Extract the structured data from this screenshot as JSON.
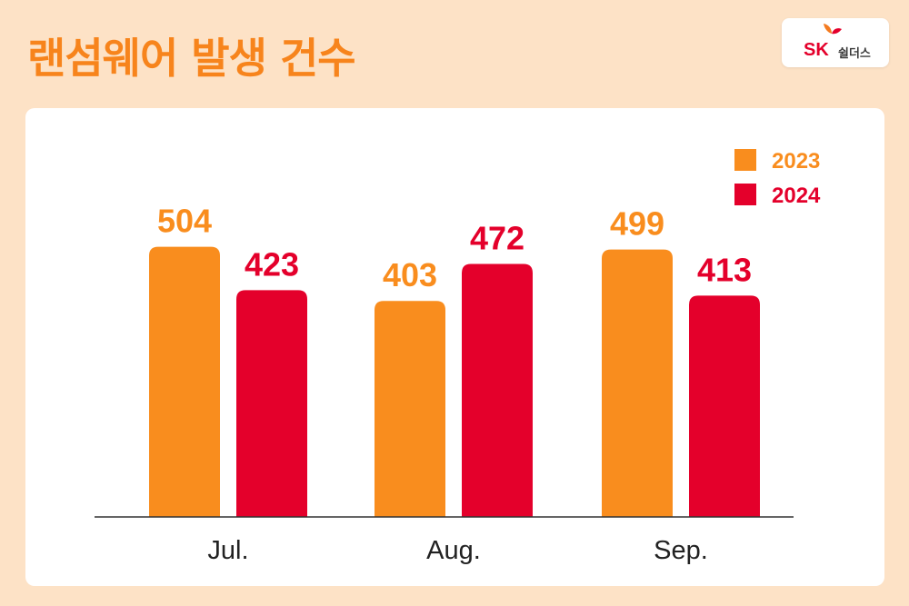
{
  "header": {
    "title": "랜섬웨어 발생 건수"
  },
  "logo": {
    "sk": "SK",
    "name": "쉴더스"
  },
  "colors": {
    "background": "#fde2c6",
    "title": "#f7841c",
    "series_2023": "#f98d1e",
    "series_2024": "#e4002b",
    "logo_red": "#e4002b",
    "logo_orange": "#f47b20",
    "axis": "#333333",
    "tick_text": "#222222"
  },
  "chart_data": {
    "type": "bar",
    "categories": [
      "Jul.",
      "Aug.",
      "Sep."
    ],
    "series": [
      {
        "name": "2023",
        "values": [
          504,
          403,
          499
        ]
      },
      {
        "name": "2024",
        "values": [
          423,
          472,
          413
        ]
      }
    ],
    "title": "랜섬웨어 발생 건수",
    "xlabel": "",
    "ylabel": "",
    "ylim": [
      0,
      580
    ],
    "grid": false,
    "legend_position": "top-right",
    "data_labels": true
  }
}
